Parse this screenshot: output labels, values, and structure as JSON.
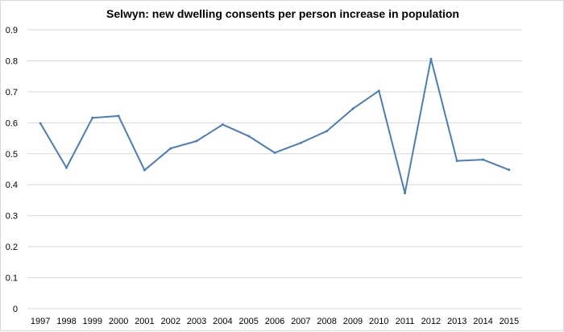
{
  "colors": {
    "line": "#4a7ebb",
    "grid": "#d9d9d9",
    "background": "#ffffff",
    "text": "#000000"
  },
  "chart_data": {
    "type": "line",
    "title": "Selwyn: new dwelling consents per person increase in population",
    "xlabel": "",
    "ylabel": "",
    "grid": true,
    "legend": "none",
    "ylim": [
      0,
      0.9
    ],
    "yticks": [
      "0",
      "0.1",
      "0.2",
      "0.3",
      "0.4",
      "0.5",
      "0.6",
      "0.7",
      "0.8",
      "0.9"
    ],
    "categories": [
      "1997",
      "1998",
      "1999",
      "2000",
      "2001",
      "2002",
      "2003",
      "2004",
      "2005",
      "2006",
      "2007",
      "2008",
      "2009",
      "2010",
      "2011",
      "2012",
      "2013",
      "2014",
      "2015"
    ],
    "series": [
      {
        "name": "Selwyn",
        "values": [
          0.598,
          0.455,
          0.616,
          0.622,
          0.447,
          0.517,
          0.541,
          0.594,
          0.557,
          0.503,
          0.535,
          0.573,
          0.645,
          0.703,
          0.373,
          0.806,
          0.477,
          0.481,
          0.448
        ]
      }
    ]
  }
}
